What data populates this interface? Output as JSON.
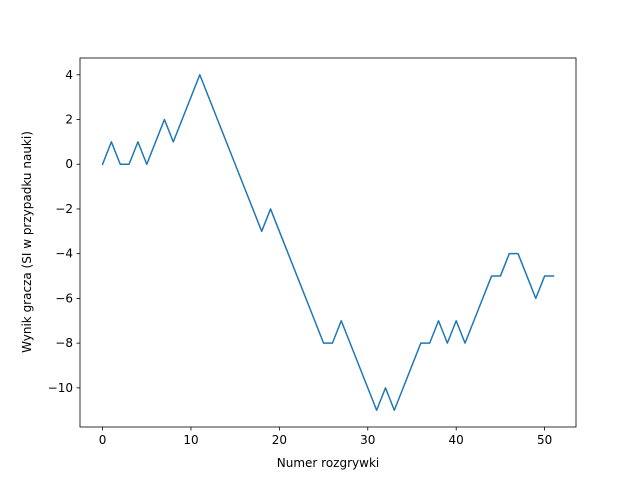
{
  "chart_data": {
    "type": "line",
    "title": "",
    "xlabel": "Numer rozgrywki",
    "ylabel": "Wynik gracza (SI w przypadku nauki)",
    "xlim": [
      -2.55,
      53.55
    ],
    "ylim": [
      -11.75,
      4.75
    ],
    "xticks": [
      0,
      10,
      20,
      30,
      40,
      50
    ],
    "yticks": [
      -10,
      -8,
      -6,
      -4,
      -2,
      0,
      2,
      4
    ],
    "grid": false,
    "series": [
      {
        "color": "#1f77b4",
        "x": [
          0,
          1,
          2,
          3,
          4,
          5,
          6,
          7,
          8,
          9,
          10,
          11,
          12,
          13,
          14,
          15,
          16,
          17,
          18,
          19,
          20,
          21,
          22,
          23,
          24,
          25,
          26,
          27,
          28,
          29,
          30,
          31,
          32,
          33,
          34,
          35,
          36,
          37,
          38,
          39,
          40,
          41,
          42,
          43,
          44,
          45,
          46,
          47,
          48,
          49,
          50,
          51
        ],
        "y": [
          0,
          1,
          0,
          0,
          1,
          0,
          1,
          2,
          1,
          2,
          3,
          4,
          3,
          2,
          1,
          0,
          -1,
          -2,
          -3,
          -2,
          -3,
          -4,
          -5,
          -6,
          -7,
          -8,
          -8,
          -7,
          -8,
          -9,
          -10,
          -11,
          -10,
          -11,
          -10,
          -9,
          -8,
          -8,
          -7,
          -8,
          -7,
          -8,
          -7,
          -6,
          -5,
          -5,
          -4,
          -4,
          -5,
          -6,
          -5,
          -5
        ]
      }
    ]
  }
}
